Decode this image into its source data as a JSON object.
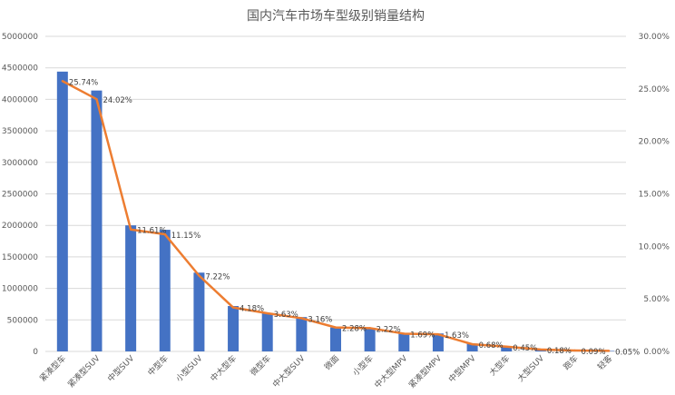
{
  "chart_data": {
    "type": "bar",
    "title": "国内汽车市场车型级别销量结构",
    "categories": [
      "紧凑型车",
      "紧凑型SUV",
      "中型SUV",
      "中型车",
      "小型SUV",
      "中大型车",
      "微型车",
      "中大型SUV",
      "微面",
      "小型车",
      "中大型MPV",
      "紧凑型MPV",
      "中型MPV",
      "大型车",
      "大型SUV",
      "跑车",
      "轻客"
    ],
    "series": [
      {
        "type": "bar",
        "axis": "left",
        "color": "#4472C4",
        "values": [
          4440000,
          4140000,
          2000000,
          1930000,
          1250000,
          720000,
          610000,
          545000,
          380000,
          375000,
          290000,
          285000,
          125000,
          75000,
          30000,
          15000,
          8000
        ]
      },
      {
        "type": "line",
        "axis": "right",
        "color": "#ED7D31",
        "values": [
          0.2574,
          0.2402,
          0.1161,
          0.1115,
          0.0722,
          0.0418,
          0.0363,
          0.0316,
          0.0228,
          0.0222,
          0.0169,
          0.0163,
          0.0068,
          0.0045,
          0.0018,
          0.0009,
          0.0005
        ],
        "labels": [
          "25.74%",
          "24.02%",
          "11.61%",
          "11.15%",
          "7.22%",
          "4.18%",
          "3.63%",
          "3.16%",
          "2.28%",
          "2.22%",
          "1.69%",
          "1.63%",
          "0.68%",
          "0.45%",
          "0.18%",
          "0.09%",
          "0.05%"
        ]
      }
    ],
    "y_left": {
      "ylim": [
        0,
        5000000
      ],
      "ticks": [
        "0",
        "500000",
        "1000000",
        "1500000",
        "2000000",
        "2500000",
        "3000000",
        "3500000",
        "4000000",
        "4500000",
        "5000000"
      ]
    },
    "y_right": {
      "ylim": [
        0,
        0.3
      ],
      "ticks": [
        "0.00%",
        "5.00%",
        "10.00%",
        "15.00%",
        "20.00%",
        "25.00%",
        "30.00%"
      ]
    },
    "grid": true,
    "legend": "none",
    "gridline_color": "#d9d9d9"
  }
}
